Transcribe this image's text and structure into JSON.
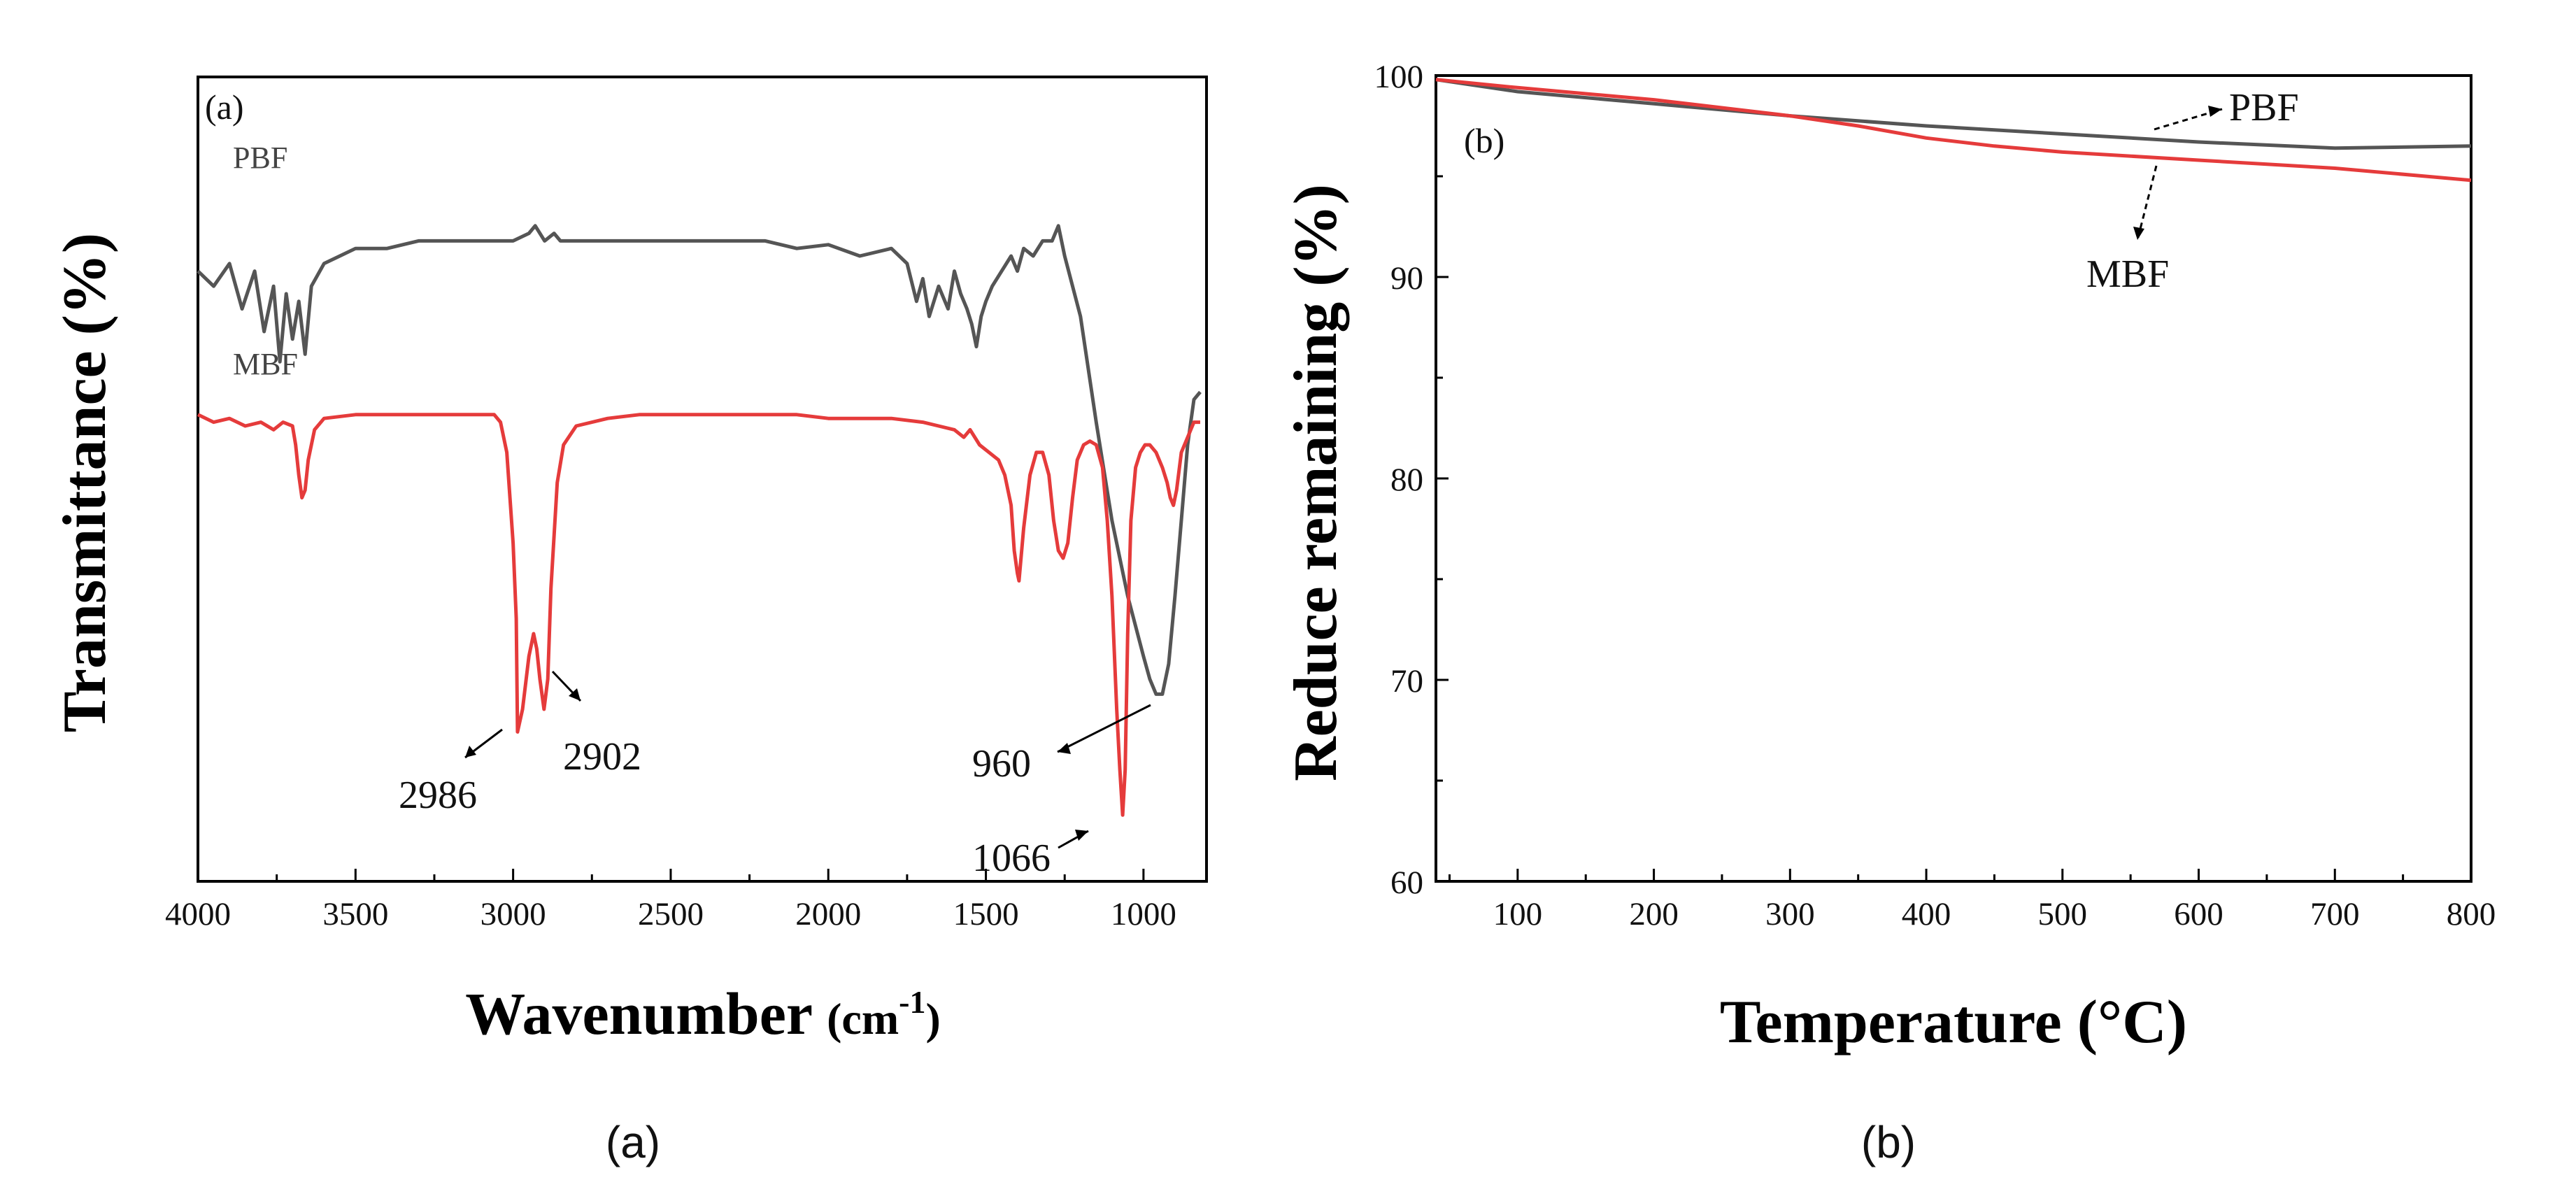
{
  "colors": {
    "pbf": "#555555",
    "mbf": "#e53b3b",
    "axis": "#000000",
    "arrow": "#000000"
  },
  "chart_data": [
    {
      "type": "line",
      "panel_label": "(a)",
      "caption": "(a)",
      "xlabel_main": "Wavenumber",
      "xlabel_unit_pre": "(cm",
      "xlabel_unit_sup": "-1",
      "xlabel_unit_post": ")",
      "ylabel": "Transmittance (%)",
      "xlim": [
        4000,
        800
      ],
      "ylim": [
        0,
        100
      ],
      "x_ticks": [
        4000,
        3500,
        3000,
        2500,
        2000,
        1500,
        1000
      ],
      "x_tick_labels": [
        "4000",
        "3500",
        "3000",
        "2500",
        "2000",
        "1500",
        "1000"
      ],
      "series": [
        {
          "name": "PBF",
          "color": "#555555",
          "points": [
            [
              4000,
              78
            ],
            [
              3950,
              76
            ],
            [
              3900,
              79
            ],
            [
              3860,
              73
            ],
            [
              3820,
              78
            ],
            [
              3790,
              70
            ],
            [
              3760,
              76
            ],
            [
              3740,
              66
            ],
            [
              3720,
              75
            ],
            [
              3700,
              69
            ],
            [
              3680,
              74
            ],
            [
              3660,
              67
            ],
            [
              3640,
              76
            ],
            [
              3600,
              79
            ],
            [
              3550,
              80
            ],
            [
              3500,
              81
            ],
            [
              3450,
              81
            ],
            [
              3400,
              81
            ],
            [
              3350,
              81.5
            ],
            [
              3300,
              82
            ],
            [
              3200,
              82
            ],
            [
              3100,
              82
            ],
            [
              3000,
              82
            ],
            [
              2950,
              83
            ],
            [
              2930,
              84
            ],
            [
              2900,
              82
            ],
            [
              2870,
              83
            ],
            [
              2850,
              82
            ],
            [
              2700,
              82
            ],
            [
              2500,
              82
            ],
            [
              2400,
              82
            ],
            [
              2200,
              82
            ],
            [
              2100,
              81
            ],
            [
              2000,
              81.5
            ],
            [
              1900,
              80
            ],
            [
              1800,
              81
            ],
            [
              1750,
              79
            ],
            [
              1720,
              74
            ],
            [
              1700,
              77
            ],
            [
              1680,
              72
            ],
            [
              1650,
              76
            ],
            [
              1620,
              73
            ],
            [
              1600,
              78
            ],
            [
              1580,
              75
            ],
            [
              1560,
              73
            ],
            [
              1545,
              71
            ],
            [
              1530,
              68
            ],
            [
              1515,
              72
            ],
            [
              1500,
              74
            ],
            [
              1480,
              76
            ],
            [
              1450,
              78
            ],
            [
              1420,
              80
            ],
            [
              1400,
              78
            ],
            [
              1380,
              81
            ],
            [
              1350,
              80
            ],
            [
              1320,
              82
            ],
            [
              1290,
              82
            ],
            [
              1270,
              84
            ],
            [
              1250,
              80
            ],
            [
              1200,
              72
            ],
            [
              1150,
              58
            ],
            [
              1100,
              45
            ],
            [
              1050,
              35
            ],
            [
              1000,
              27
            ],
            [
              980,
              24
            ],
            [
              960,
              22
            ],
            [
              940,
              22
            ],
            [
              920,
              26
            ],
            [
              900,
              35
            ],
            [
              880,
              45
            ],
            [
              860,
              55
            ],
            [
              840,
              61
            ],
            [
              820,
              62
            ]
          ]
        },
        {
          "name": "MBF",
          "color": "#e53b3b",
          "points": [
            [
              4000,
              59
            ],
            [
              3950,
              58
            ],
            [
              3900,
              58.5
            ],
            [
              3850,
              57.5
            ],
            [
              3800,
              58
            ],
            [
              3760,
              57
            ],
            [
              3730,
              58
            ],
            [
              3700,
              57.5
            ],
            [
              3690,
              55
            ],
            [
              3680,
              51
            ],
            [
              3670,
              48
            ],
            [
              3660,
              49
            ],
            [
              3650,
              53
            ],
            [
              3630,
              57
            ],
            [
              3600,
              58.5
            ],
            [
              3500,
              59
            ],
            [
              3400,
              59
            ],
            [
              3300,
              59
            ],
            [
              3200,
              59
            ],
            [
              3100,
              59
            ],
            [
              3060,
              59
            ],
            [
              3040,
              58
            ],
            [
              3020,
              54
            ],
            [
              3000,
              42
            ],
            [
              2990,
              32
            ],
            [
              2986,
              17
            ],
            [
              2970,
              20
            ],
            [
              2950,
              27
            ],
            [
              2935,
              30
            ],
            [
              2925,
              28
            ],
            [
              2915,
              24
            ],
            [
              2902,
              20
            ],
            [
              2890,
              24
            ],
            [
              2880,
              36
            ],
            [
              2860,
              50
            ],
            [
              2840,
              55
            ],
            [
              2800,
              57.5
            ],
            [
              2700,
              58.5
            ],
            [
              2600,
              59
            ],
            [
              2500,
              59
            ],
            [
              2300,
              59
            ],
            [
              2100,
              59
            ],
            [
              2000,
              58.5
            ],
            [
              1800,
              58.5
            ],
            [
              1700,
              58
            ],
            [
              1650,
              57.5
            ],
            [
              1600,
              57
            ],
            [
              1570,
              56
            ],
            [
              1550,
              57
            ],
            [
              1520,
              55
            ],
            [
              1490,
              54
            ],
            [
              1460,
              53
            ],
            [
              1440,
              51
            ],
            [
              1420,
              47
            ],
            [
              1410,
              41
            ],
            [
              1400,
              38
            ],
            [
              1395,
              37
            ],
            [
              1380,
              44
            ],
            [
              1360,
              51
            ],
            [
              1340,
              54
            ],
            [
              1320,
              54
            ],
            [
              1300,
              51
            ],
            [
              1285,
              45
            ],
            [
              1270,
              41
            ],
            [
              1255,
              40
            ],
            [
              1240,
              42
            ],
            [
              1225,
              48
            ],
            [
              1210,
              53
            ],
            [
              1190,
              55
            ],
            [
              1170,
              55.5
            ],
            [
              1150,
              55
            ],
            [
              1130,
              52
            ],
            [
              1115,
              45
            ],
            [
              1100,
              35
            ],
            [
              1085,
              20
            ],
            [
              1075,
              12
            ],
            [
              1066,
              6
            ],
            [
              1058,
              12
            ],
            [
              1050,
              30
            ],
            [
              1040,
              45
            ],
            [
              1025,
              52
            ],
            [
              1010,
              54
            ],
            [
              995,
              55
            ],
            [
              980,
              55
            ],
            [
              960,
              54
            ],
            [
              940,
              52
            ],
            [
              925,
              50
            ],
            [
              915,
              48
            ],
            [
              905,
              47
            ],
            [
              895,
              49
            ],
            [
              880,
              54
            ],
            [
              860,
              56
            ],
            [
              840,
              58
            ],
            [
              820,
              58
            ]
          ]
        }
      ],
      "series_labels": [
        {
          "series": "PBF",
          "text": "PBF"
        },
        {
          "series": "MBF",
          "text": "MBF"
        }
      ],
      "annotations": [
        {
          "text": "2986",
          "peak": [
            2986,
            17
          ]
        },
        {
          "text": "2902",
          "peak": [
            2902,
            20
          ]
        },
        {
          "text": "960",
          "peak": [
            960,
            22
          ]
        },
        {
          "text": "1066",
          "peak": [
            1066,
            6
          ]
        }
      ]
    },
    {
      "type": "line",
      "panel_label": "(b)",
      "caption": "(b)",
      "xlabel": "Temperature (°C)",
      "ylabel": "Reduce remaining (%)",
      "xlim": [
        40,
        800
      ],
      "ylim": [
        60,
        100
      ],
      "x_ticks": [
        100,
        200,
        300,
        400,
        500,
        600,
        700,
        800
      ],
      "x_tick_labels": [
        "100",
        "200",
        "300",
        "400",
        "500",
        "600",
        "700",
        "800"
      ],
      "y_ticks": [
        60,
        70,
        80,
        90,
        100
      ],
      "y_tick_labels": [
        "60",
        "70",
        "80",
        "90",
        "100"
      ],
      "series": [
        {
          "name": "PBF",
          "color": "#555555",
          "points": [
            [
              40,
              99.8
            ],
            [
              100,
              99.2
            ],
            [
              200,
              98.6
            ],
            [
              300,
              98.0
            ],
            [
              400,
              97.5
            ],
            [
              500,
              97.1
            ],
            [
              600,
              96.7
            ],
            [
              700,
              96.4
            ],
            [
              800,
              96.5
            ]
          ]
        },
        {
          "name": "MBF",
          "color": "#e53b3b",
          "points": [
            [
              40,
              99.8
            ],
            [
              100,
              99.4
            ],
            [
              200,
              98.8
            ],
            [
              300,
              98.0
            ],
            [
              350,
              97.5
            ],
            [
              400,
              96.9
            ],
            [
              450,
              96.5
            ],
            [
              500,
              96.2
            ],
            [
              600,
              95.8
            ],
            [
              700,
              95.4
            ],
            [
              800,
              94.8
            ]
          ]
        }
      ],
      "annotations": [
        {
          "text": "PBF",
          "series": "PBF",
          "at_x": 560
        },
        {
          "text": "MBF",
          "series": "MBF",
          "at_x": 600
        }
      ]
    }
  ]
}
